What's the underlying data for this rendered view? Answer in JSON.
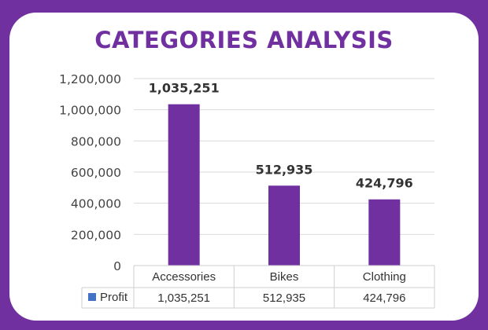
{
  "chart_data": {
    "type": "bar",
    "title": "CATEGORIES ANALYSIS",
    "categories": [
      "Accessories",
      "Bikes",
      "Clothing"
    ],
    "series": [
      {
        "name": "Profit",
        "values": [
          1035251,
          512935,
          424796
        ],
        "labels": [
          "1,035,251",
          "512,935",
          "424,796"
        ]
      }
    ],
    "ylim": [
      0,
      1200000
    ],
    "yticks": [
      "0",
      "200,000",
      "400,000",
      "600,000",
      "800,000",
      "1,000,000",
      "1,200,000"
    ],
    "grid": true,
    "data_table": true,
    "legend": "data-table-row",
    "colors": {
      "bar": "#7030a0",
      "legend_key": "#4472c4",
      "background": "#7030a0",
      "title": "#7030a0"
    }
  }
}
